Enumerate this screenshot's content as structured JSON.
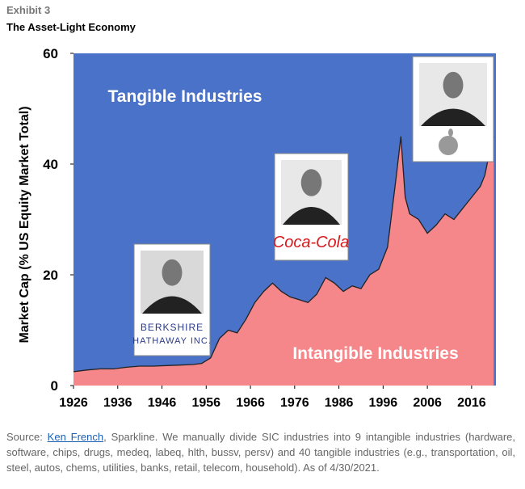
{
  "header": {
    "exhibit": "Exhibit 3",
    "title": "The Asset-Light Economy"
  },
  "chart_data": {
    "type": "area",
    "y_label": "Market Cap (% US Equity Market Total)",
    "tangible_label": "Tangible Industries",
    "background_color": "#4a72c8",
    "x": [
      1926,
      1929,
      1932,
      1935,
      1938,
      1941,
      1944,
      1947,
      1950,
      1953,
      1955,
      1957,
      1959,
      1961,
      1963,
      1965,
      1967,
      1969,
      1971,
      1973,
      1975,
      1977,
      1979,
      1981,
      1983,
      1985,
      1987,
      1989,
      1991,
      1993,
      1995,
      1997,
      1999,
      2000,
      2001,
      2002,
      2004,
      2006,
      2008,
      2010,
      2012,
      2014,
      2016,
      2018,
      2019,
      2020,
      2021
    ],
    "series": [
      {
        "name": "Intangible Industries",
        "color": "#f5868a",
        "values": [
          2.5,
          2.8,
          3,
          3,
          3.3,
          3.5,
          3.5,
          3.6,
          3.7,
          3.8,
          4,
          5,
          8.5,
          10,
          9.5,
          12,
          15,
          17,
          18.5,
          17,
          16,
          15.5,
          15,
          16.5,
          19.5,
          18.5,
          17,
          18,
          17.5,
          20,
          21,
          25,
          38,
          45,
          34,
          31,
          30,
          27.5,
          29,
          31,
          30,
          32,
          34,
          36,
          38,
          42,
          45
        ]
      }
    ],
    "xlim": [
      1926,
      2021.5
    ],
    "xticks": [
      1926,
      1936,
      1946,
      1956,
      1966,
      1976,
      1986,
      1996,
      2006,
      2016
    ],
    "ylim": [
      0,
      60
    ],
    "yticks": [
      0,
      20,
      40,
      60
    ],
    "logos": {
      "berkshire_1": "BERKSHIRE",
      "berkshire_2": "HATHAWAY INC.",
      "coca_cola": "Coca-Cola"
    }
  },
  "footer": {
    "prefix": "Source:",
    "link": "Ken French",
    "text": ", Sparkline. We manually divide SIC industries into  9 intangible industries (hardware, software, chips, drugs, medeq, labeq, hlth, bussv, persv) and 40 tangible industries (e.g., transportation, oil, steel, autos, chems, utilities, banks, retail, telecom, household). As of 4/30/2021."
  }
}
